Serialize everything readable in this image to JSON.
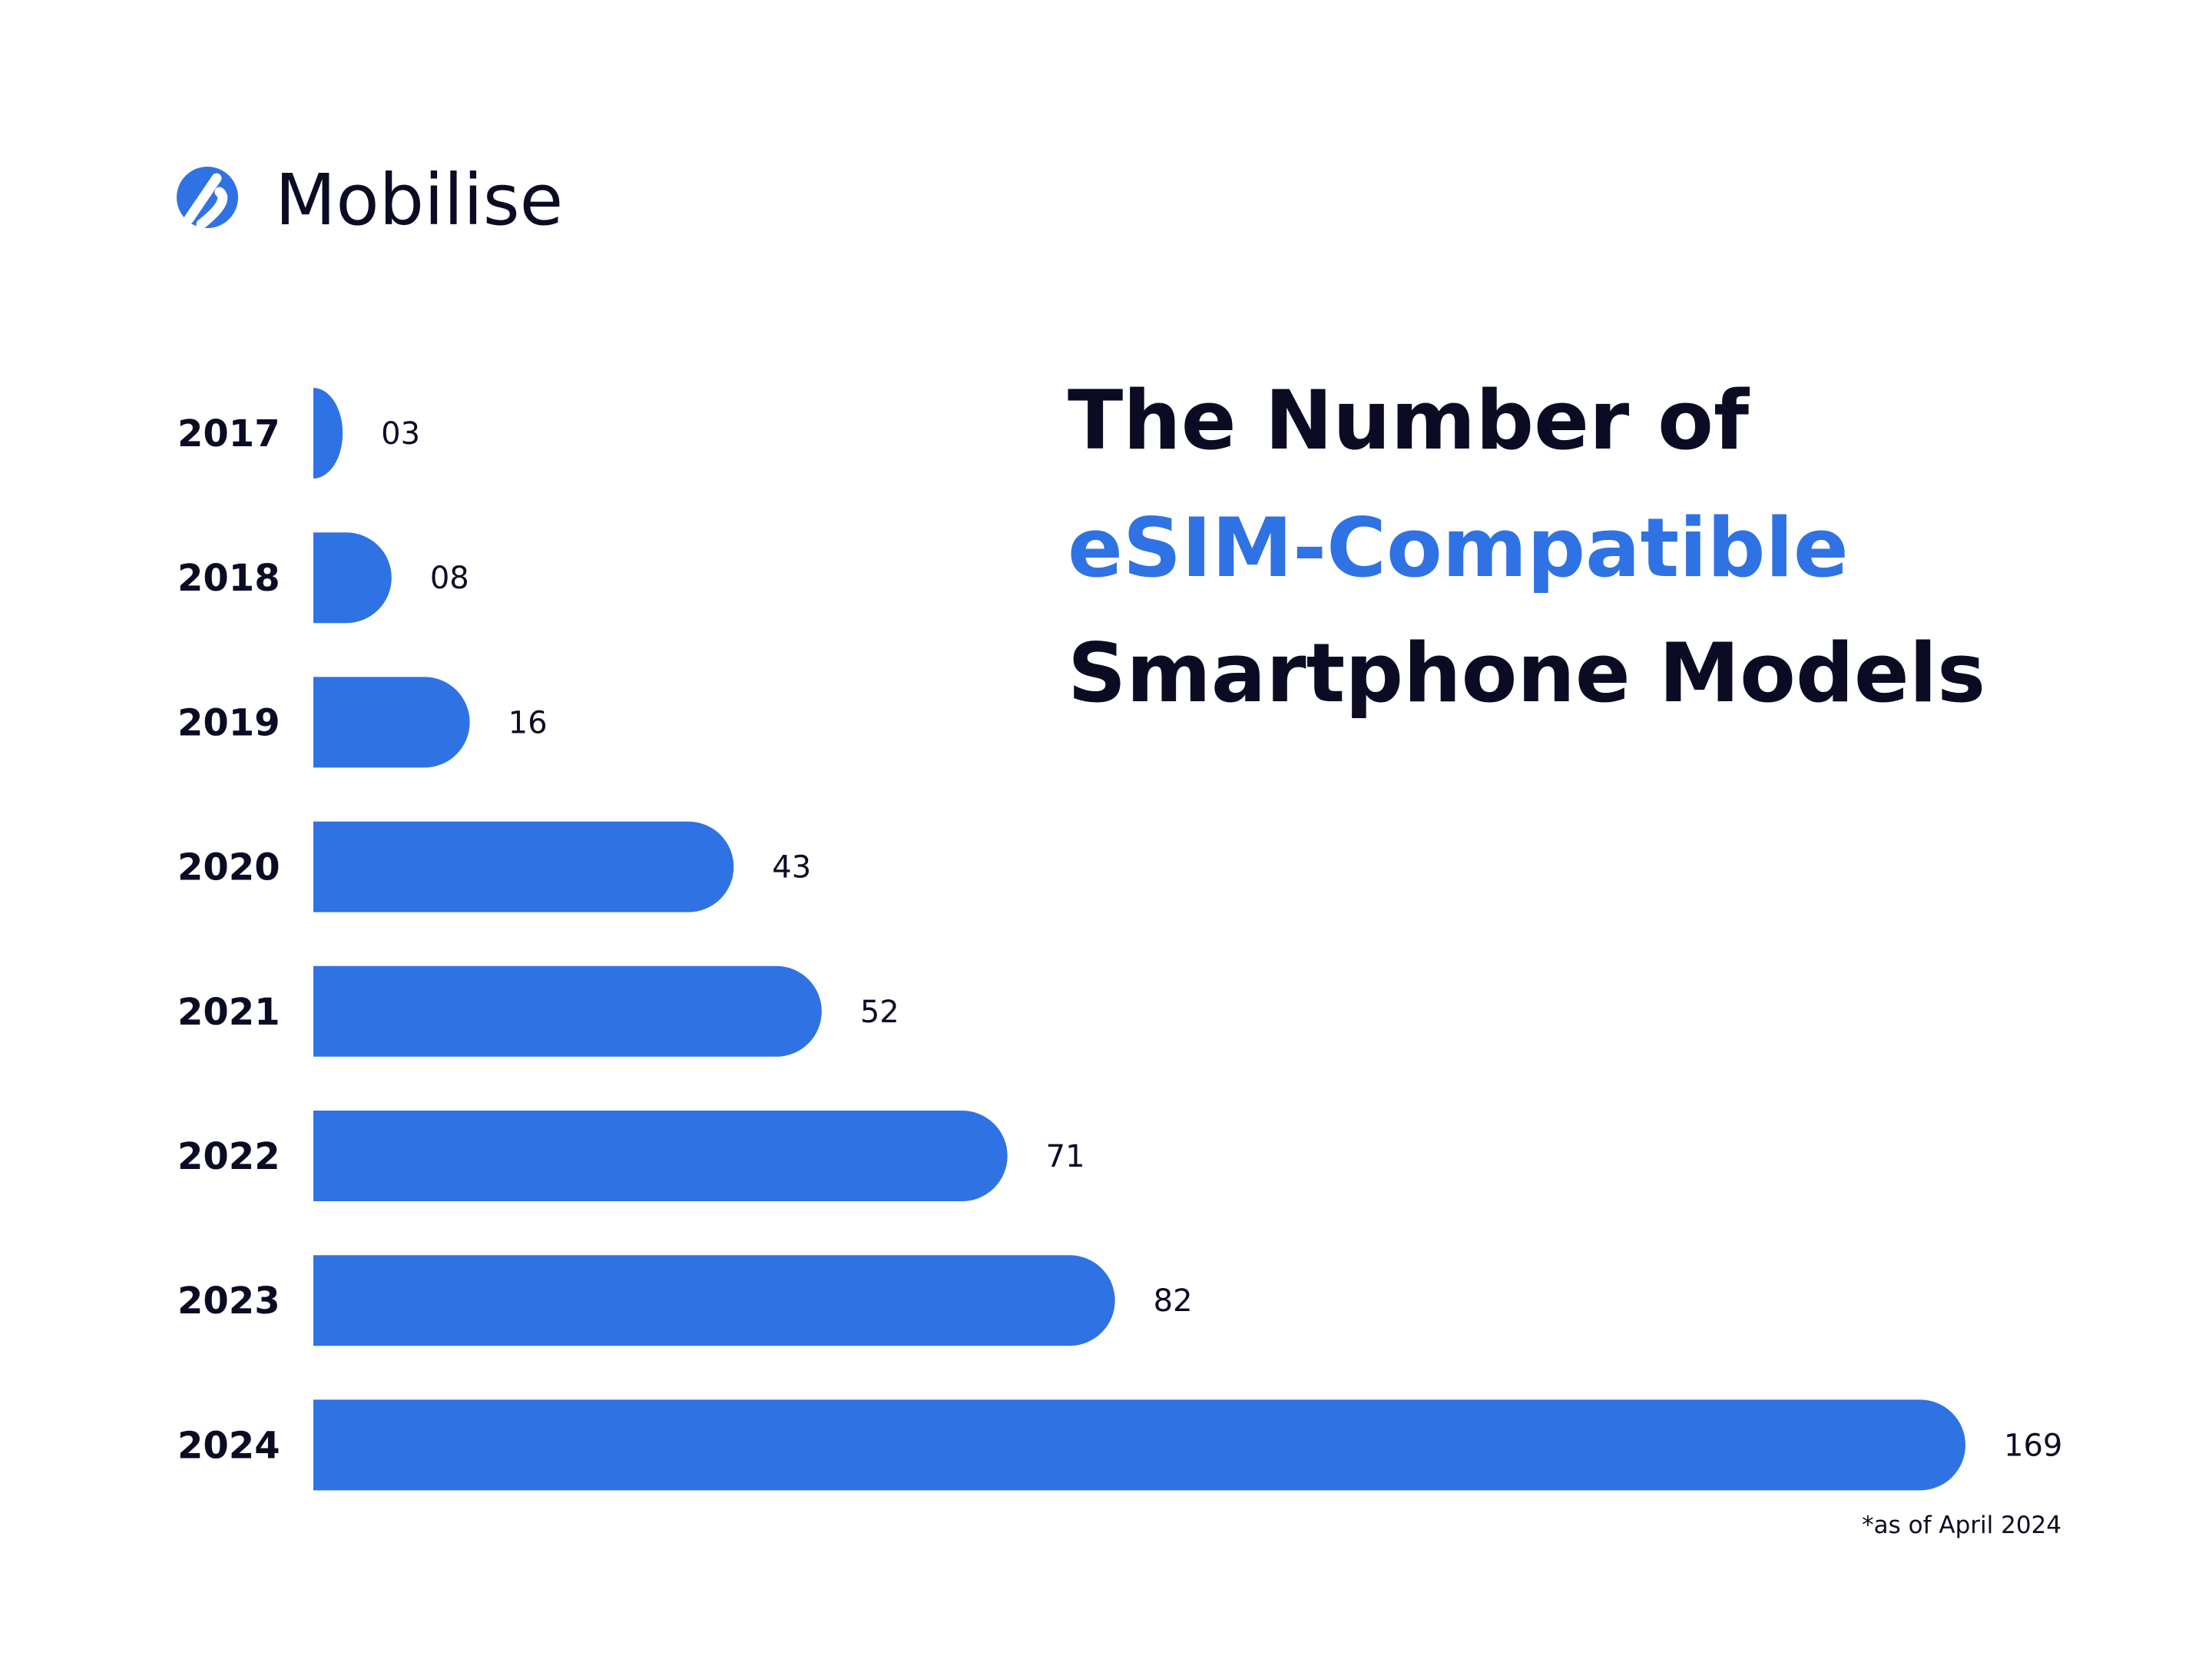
{
  "brand": "Mobilise",
  "chart_data": {
    "type": "bar",
    "orientation": "horizontal",
    "title": [
      "The Number of",
      "eSIM-Compatible",
      "Smartphone Models"
    ],
    "categories": [
      "2017",
      "2018",
      "2019",
      "2020",
      "2021",
      "2022",
      "2023",
      "2024"
    ],
    "values": [
      3,
      8,
      16,
      43,
      52,
      71,
      82,
      169
    ],
    "value_labels": [
      "03",
      "08",
      "16",
      "43",
      "52",
      "71",
      "82",
      "169"
    ],
    "color": "#2f72e4",
    "note": "*as of April 2024"
  }
}
